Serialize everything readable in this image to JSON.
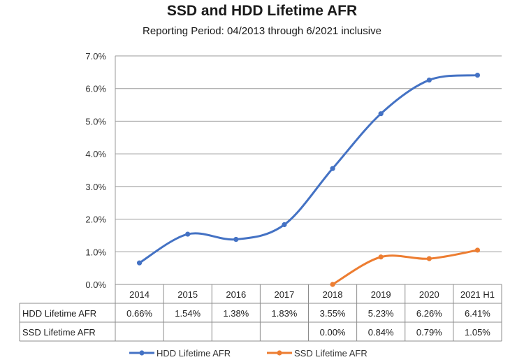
{
  "chart_data": {
    "type": "line",
    "title": "SSD and HDD Lifetime AFR",
    "subtitle": "Reporting Period: 04/2013 through 6/2021 inclusive",
    "categories": [
      "2014",
      "2015",
      "2016",
      "2017",
      "2018",
      "2019",
      "2020",
      "2021 H1"
    ],
    "ylim": [
      0,
      7
    ],
    "yticks": [
      "0.0%",
      "1.0%",
      "2.0%",
      "3.0%",
      "4.0%",
      "5.0%",
      "6.0%",
      "7.0%"
    ],
    "grid": true,
    "legend_position": "bottom",
    "series": [
      {
        "name": "HDD Lifetime AFR",
        "color": "#4472c4",
        "values": [
          0.66,
          1.54,
          1.38,
          1.83,
          3.55,
          5.23,
          6.26,
          6.41
        ],
        "labels": [
          "0.66%",
          "1.54%",
          "1.38%",
          "1.83%",
          "3.55%",
          "5.23%",
          "6.26%",
          "6.41%"
        ]
      },
      {
        "name": "SSD Lifetime AFR",
        "color": "#ed7d31",
        "values": [
          null,
          null,
          null,
          null,
          0.0,
          0.84,
          0.79,
          1.05
        ],
        "labels": [
          "",
          "",
          "",
          "",
          "0.00%",
          "0.84%",
          "0.79%",
          "1.05%"
        ]
      }
    ]
  }
}
